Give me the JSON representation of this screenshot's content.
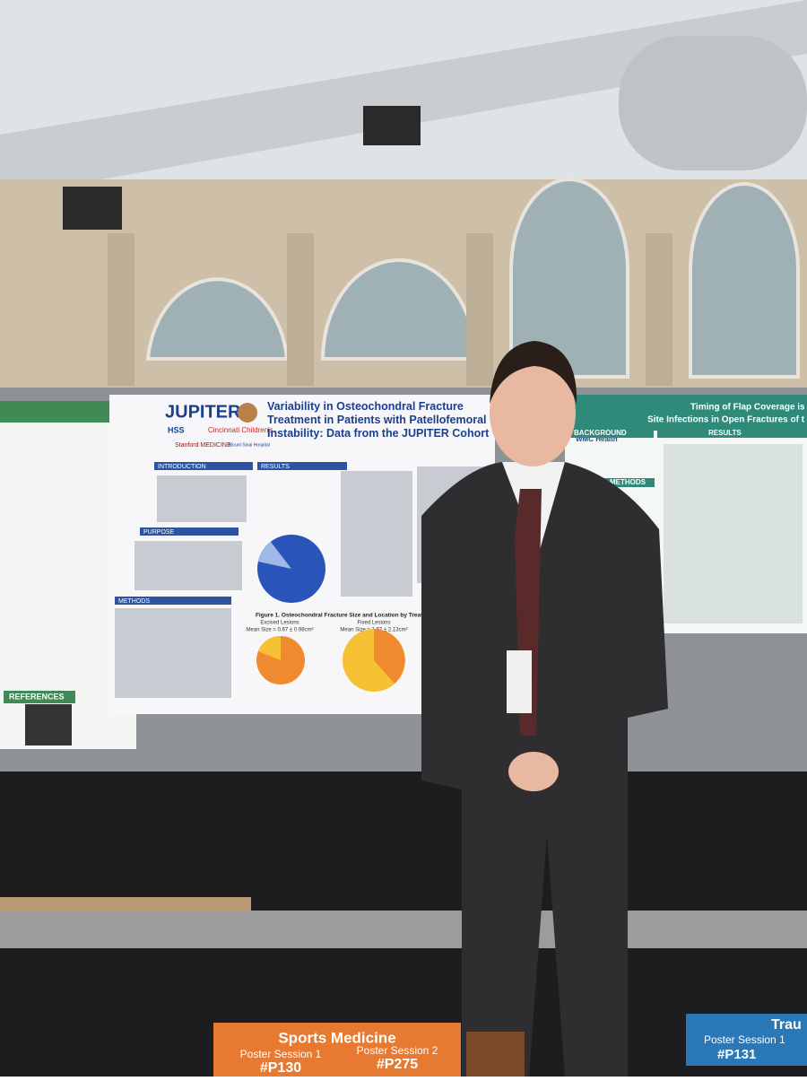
{
  "posters": {
    "left": {
      "heading": "REFERENCES"
    },
    "center": {
      "logo": "JUPITER",
      "title": "Variability in Osteochondral Fracture Treatment in Patients with Patellofemoral Instability: Data from the JUPITER Cohort",
      "affiliations": [
        "HSS",
        "Cincinnati Children's",
        "Stanford MEDICINE",
        "Mount Sinai Hospital"
      ],
      "sections": [
        "INTRODUCTION",
        "PURPOSE",
        "METHODS",
        "RESULTS"
      ],
      "figure_caption": "Figure 1. Osteochondral Fracture Size and Location by Treatment Modality",
      "panels": [
        {
          "label": "Excised Lesions",
          "stat": "Mean Size = 0.67 ± 0.98cm²"
        },
        {
          "label": "Fixed Lesions",
          "stat": "Mean Size = 1.67 ± 2.13cm²"
        }
      ]
    },
    "right": {
      "logo": "WMC Health",
      "title_lines": [
        "Timing of Flap Coverage is Associ",
        "Site Infections in Open Fractures of t"
      ],
      "sections": [
        "BACKGROUND",
        "METHODS",
        "RESULTS"
      ]
    }
  },
  "floor_signs": [
    {
      "topic": "Sports Medicine",
      "sessions": [
        {
          "name": "Poster Session 1",
          "code": "#P130"
        },
        {
          "name": "Poster Session 2",
          "code": "#P275"
        }
      ]
    },
    {
      "topic": "Trau",
      "sessions": [
        {
          "name": "Poster Session 1",
          "code": "#P131"
        }
      ]
    }
  ]
}
